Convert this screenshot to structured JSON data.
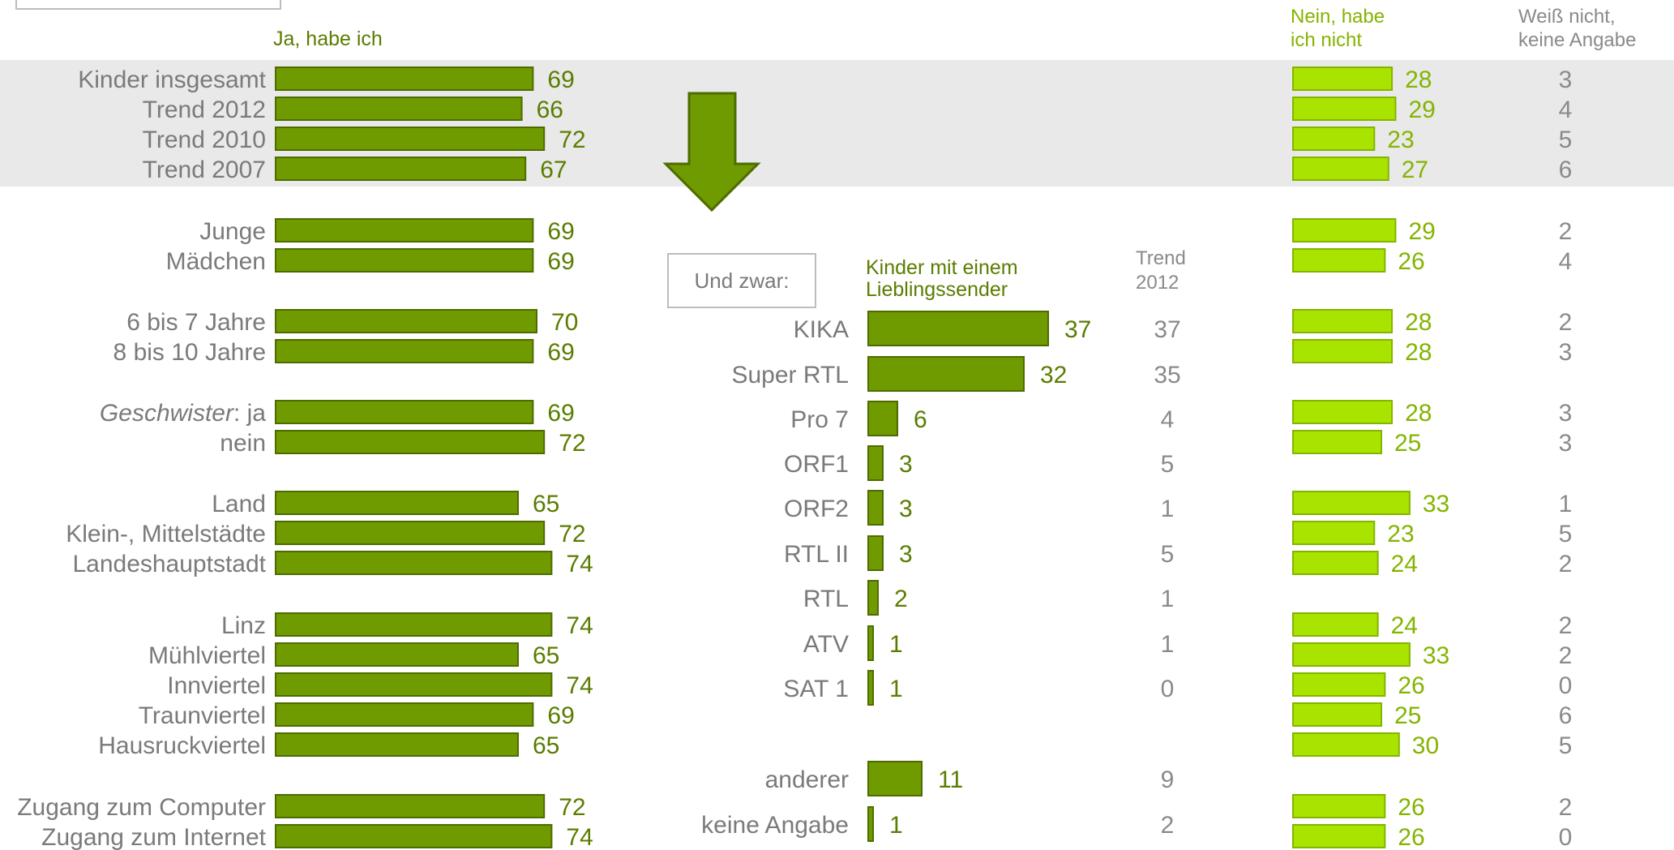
{
  "headers": {
    "ja": "Ja, habe ich",
    "nein_line1": "Nein, habe",
    "nein_line2": "ich nicht",
    "wn_line1": "Weiß nicht,",
    "wn_line2": "keine Angabe"
  },
  "colors": {
    "ja_bar": "#6f9a00",
    "ja_bar_border": "#4d6c00",
    "nein_bar": "#a8e400",
    "nein_bar_border": "#84b400",
    "shade_band": "#e9e9e9",
    "arrow_fill": "#6f9a00",
    "arrow_border": "#4d6c00"
  },
  "chart_data": [
    {
      "type": "bar",
      "orientation": "horizontal",
      "stacked_panels": [
        "Ja, habe ich",
        "Nein, habe ich nicht",
        "Weiß nicht, keine Angabe"
      ],
      "categories": [
        "Kinder insgesamt",
        "Trend 2012",
        "Trend 2010",
        "Trend 2007",
        "Junge",
        "Mädchen",
        "6 bis 7 Jahre",
        "8 bis 10 Jahre",
        "Geschwister: ja",
        "nein",
        "Land",
        "Klein-, Mittelstädte",
        "Landeshauptstadt",
        "Linz",
        "Mühlviertel",
        "Innviertel",
        "Traunviertel",
        "Hausruckviertel",
        "Zugang zum Computer",
        "Zugang zum Internet"
      ],
      "series": [
        {
          "name": "Ja, habe ich",
          "values": [
            69,
            66,
            72,
            67,
            69,
            69,
            70,
            69,
            69,
            72,
            65,
            72,
            74,
            74,
            65,
            74,
            69,
            65,
            72,
            74
          ]
        },
        {
          "name": "Nein, habe ich nicht",
          "values": [
            28,
            29,
            23,
            27,
            29,
            26,
            28,
            28,
            28,
            25,
            33,
            23,
            24,
            24,
            33,
            26,
            25,
            30,
            26,
            26
          ]
        },
        {
          "name": "Weiß nicht, keine Angabe",
          "values": [
            3,
            4,
            5,
            6,
            2,
            4,
            2,
            3,
            3,
            3,
            1,
            5,
            2,
            2,
            2,
            0,
            6,
            5,
            2,
            0
          ]
        }
      ]
    },
    {
      "type": "bar",
      "orientation": "horizontal",
      "intro": "Und zwar:",
      "title_line1": "Kinder mit einem",
      "title_line2": "Lieblingssender",
      "trend_header_line1": "Trend",
      "trend_header_line2": "2012",
      "categories": [
        "KIKA",
        "Super RTL",
        "Pro 7",
        "ORF1",
        "ORF2",
        "RTL II",
        "RTL",
        "ATV",
        "SAT 1",
        "anderer",
        "keine Angabe"
      ],
      "series": [
        {
          "name": "Kinder mit einem Lieblingssender",
          "values": [
            37,
            32,
            6,
            3,
            3,
            3,
            2,
            1,
            1,
            11,
            1
          ]
        },
        {
          "name": "Trend 2012",
          "values": [
            37,
            35,
            4,
            5,
            1,
            5,
            1,
            1,
            0,
            9,
            2
          ]
        }
      ]
    }
  ]
}
